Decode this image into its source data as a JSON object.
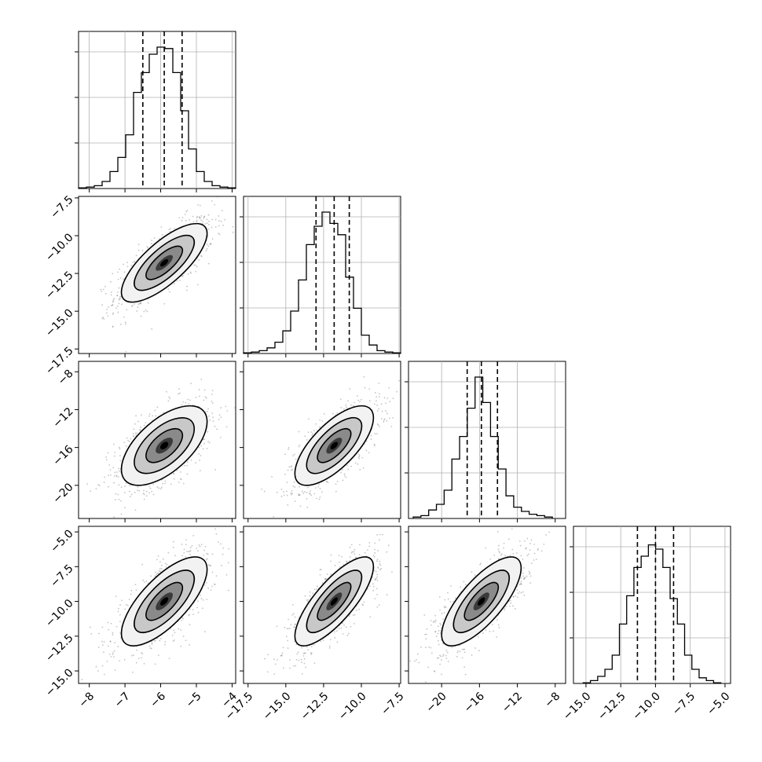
{
  "chart_data": {
    "type": "corner",
    "n_params": 4,
    "colors": {
      "line": "#000000",
      "grid": "#b0b0b0",
      "points": "#555555"
    },
    "grid": true,
    "params": [
      {
        "range": [
          -8.3,
          -3.9
        ],
        "ticks": [
          -8,
          -7,
          -6,
          -5,
          -4
        ],
        "tick_labels": [
          "−8",
          "−7",
          "−6",
          "−5",
          "−4"
        ],
        "quantiles": [
          -6.5,
          -5.9,
          -5.4
        ],
        "hist_bins": [
          -8.3,
          -3.9
        ],
        "hist": [
          0.005,
          0.01,
          0.02,
          0.05,
          0.12,
          0.22,
          0.38,
          0.68,
          0.82,
          0.95,
          1.0,
          0.99,
          0.82,
          0.55,
          0.28,
          0.12,
          0.05,
          0.02,
          0.01,
          0.005
        ]
      },
      {
        "range": [
          -17.8,
          -7.4
        ],
        "ticks": [
          -17.5,
          -15.0,
          -12.5,
          -10.0,
          -7.5
        ],
        "tick_labels": [
          "−17.5",
          "−15.0",
          "−12.5",
          "−10.0",
          "−7.5"
        ],
        "quantiles": [
          -13.0,
          -11.8,
          -10.8
        ],
        "hist_bins": [
          -17.8,
          -7.4
        ],
        "hist": [
          0.005,
          0.01,
          0.02,
          0.04,
          0.08,
          0.16,
          0.3,
          0.52,
          0.77,
          0.9,
          1.0,
          0.92,
          0.84,
          0.54,
          0.32,
          0.13,
          0.06,
          0.02,
          0.01,
          0.005
        ]
      },
      {
        "range": [
          -23.5,
          -6.9
        ],
        "ticks": [
          -20,
          -16,
          -12,
          -8
        ],
        "tick_labels": [
          "−20",
          "−16",
          "−12",
          "−8"
        ],
        "quantiles": [
          -17.3,
          -15.8,
          -14.1
        ],
        "hist_bins": [
          -23.0,
          -8.3
        ],
        "hist": [
          0.01,
          0.02,
          0.06,
          0.1,
          0.2,
          0.42,
          0.58,
          0.78,
          1.0,
          0.82,
          0.58,
          0.35,
          0.16,
          0.08,
          0.05,
          0.03,
          0.02,
          0.01
        ]
      },
      {
        "range": [
          -15.9,
          -4.6
        ],
        "ticks": [
          -15.0,
          -12.5,
          -10.0,
          -7.5,
          -5.0
        ],
        "tick_labels": [
          "−15.0",
          "−12.5",
          "−10.0",
          "−7.5",
          "−5.0"
        ],
        "quantiles": [
          -11.3,
          -10.0,
          -8.7
        ],
        "hist_bins": [
          -15.2,
          -5.3
        ],
        "hist": [
          0.005,
          0.02,
          0.05,
          0.1,
          0.2,
          0.42,
          0.62,
          0.82,
          0.9,
          0.98,
          0.95,
          0.82,
          0.6,
          0.42,
          0.2,
          0.1,
          0.04,
          0.02,
          0.005
        ]
      }
    ],
    "pairs": [
      {
        "row": 1,
        "col": 0,
        "mean": [
          -5.9,
          -11.8
        ],
        "sd": [
          0.6,
          1.3
        ],
        "rho": 0.75
      },
      {
        "row": 2,
        "col": 0,
        "mean": [
          -5.9,
          -15.8
        ],
        "sd": [
          0.6,
          2.1
        ],
        "rho": 0.6
      },
      {
        "row": 2,
        "col": 1,
        "mean": [
          -11.8,
          -15.8
        ],
        "sd": [
          1.3,
          2.1
        ],
        "rho": 0.7
      },
      {
        "row": 3,
        "col": 0,
        "mean": [
          -5.9,
          -10.0
        ],
        "sd": [
          0.6,
          1.6
        ],
        "rho": 0.72
      },
      {
        "row": 3,
        "col": 1,
        "mean": [
          -11.8,
          -10.0
        ],
        "sd": [
          1.3,
          1.6
        ],
        "rho": 0.78
      },
      {
        "row": 3,
        "col": 2,
        "mean": [
          -15.8,
          -10.0
        ],
        "sd": [
          2.1,
          1.6
        ],
        "rho": 0.75
      }
    ]
  }
}
